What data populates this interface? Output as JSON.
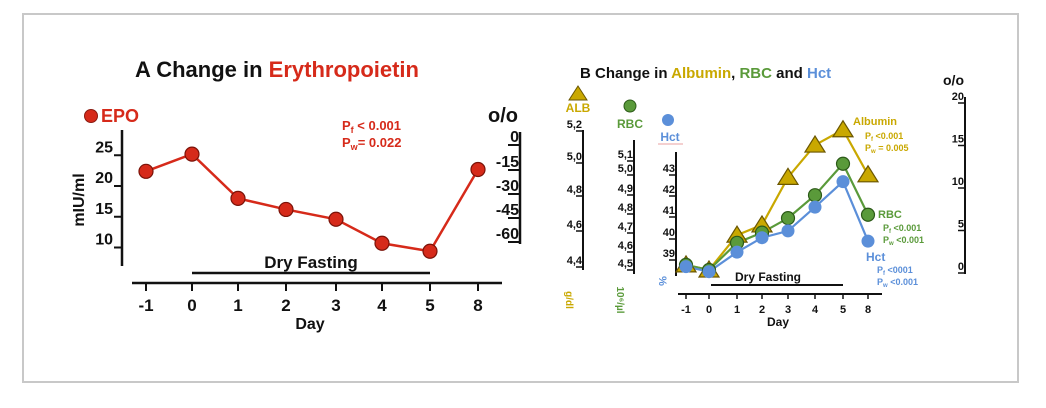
{
  "chart_data": [
    {
      "type": "line",
      "panel": "A",
      "title_prefix": "A",
      "title_black": "Change in",
      "title_colored": "Erythropoietin",
      "title_color": "#d62a1a",
      "x": [
        "-1",
        "0",
        "1",
        "2",
        "3",
        "4",
        "5",
        "8"
      ],
      "xlabel": "Day",
      "ylabel": "mIU/ml",
      "yticks": [
        25,
        20,
        15,
        10
      ],
      "ylim": [
        7,
        28
      ],
      "right_axis": {
        "label": "o/o",
        "ticks": [
          0,
          -15,
          -30,
          -45,
          -60
        ]
      },
      "annotation_bar": "Dry Fasting",
      "annotation_range": [
        "0",
        "5"
      ],
      "grid": false,
      "legend": [
        {
          "name": "EPO",
          "marker": "circle",
          "color": "#d62a1a"
        }
      ],
      "series": [
        {
          "name": "EPO",
          "color": "#d62a1a",
          "marker": "circle",
          "values": [
            21.9,
            24.7,
            17.5,
            15.7,
            14.1,
            10.2,
            8.9,
            22.2
          ]
        }
      ],
      "stats": [
        "Pf < 0.001",
        "Pw= 0.022"
      ]
    },
    {
      "type": "line",
      "panel": "B",
      "title_prefix": "B",
      "title_parts": [
        {
          "text": "Change in ",
          "color": "#111111"
        },
        {
          "text": "Albumin",
          "color": "#c9a800"
        },
        {
          "text": ", ",
          "color": "#111111"
        },
        {
          "text": "RBC",
          "color": "#5a9a3a"
        },
        {
          "text": " and ",
          "color": "#111111"
        },
        {
          "text": "Hct",
          "color": "#5b8fd9"
        }
      ],
      "x": [
        "-1",
        "0",
        "1",
        "2",
        "3",
        "4",
        "5",
        "8"
      ],
      "xlabel": "Day",
      "annotation_bar": "Dry Fasting",
      "annotation_range": [
        "0",
        "5"
      ],
      "grid": false,
      "left_axes": [
        {
          "name": "ALB",
          "unit": "g/dl",
          "color": "#c9a800",
          "marker": "triangle",
          "ticks": [
            "5,2",
            "5,0",
            "4,8",
            "4,6",
            "4,4"
          ]
        },
        {
          "name": "RBC",
          "unit": "10⁶/µl",
          "color": "#5a9a3a",
          "marker": "circle",
          "ticks": [
            "5,1",
            "5,0",
            "4,9",
            "4,8",
            "4,7",
            "4,6",
            "4,5"
          ]
        },
        {
          "name": "Hct",
          "unit": "%",
          "color": "#5b8fd9",
          "marker": "circle",
          "ticks": [
            "43",
            "42",
            "41",
            "40",
            "39"
          ]
        }
      ],
      "right_axis": {
        "label": "o/o",
        "ticks": [
          20,
          15,
          10,
          5,
          0
        ],
        "ylim": [
          0,
          20
        ]
      },
      "series": [
        {
          "name": "Albumin",
          "color": "#c9a800",
          "marker": "triangle",
          "values": [
            0.6,
            0.0,
            4.1,
            5.3,
            10.9,
            14.7,
            16.5,
            11.2
          ],
          "stats": [
            "Pf <0.001",
            "Pw= 0.005"
          ]
        },
        {
          "name": "RBC",
          "color": "#5a9a3a",
          "marker": "circle",
          "values": [
            0.6,
            0.0,
            3.2,
            4.4,
            6.1,
            8.8,
            12.5,
            6.5
          ],
          "stats": [
            "Pf<0.001",
            "Pw<0.001"
          ]
        },
        {
          "name": "Hct",
          "color": "#5b8fd9",
          "marker": "circle",
          "values": [
            0.4,
            -0.2,
            2.1,
            3.8,
            4.6,
            7.4,
            10.4,
            3.4
          ],
          "stats": [
            "Pf <0001",
            "Pw<0.001"
          ]
        }
      ]
    }
  ]
}
